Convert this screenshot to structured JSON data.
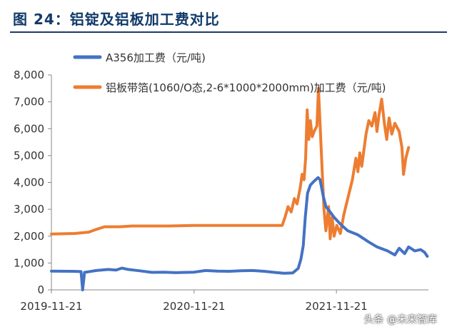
{
  "title": "图 24：铝锭及铝板加工费对比",
  "watermark": "头条 @未来智库",
  "colors": {
    "title": "#123a6a",
    "series_1": "#4472c4",
    "series_2": "#ed7d31",
    "axis": "#888888",
    "text": "#333333"
  },
  "chart_data": {
    "type": "line",
    "xlabel": "",
    "ylabel": "",
    "ylim": [
      0,
      8000
    ],
    "yticks": [
      0,
      1000,
      2000,
      3000,
      4000,
      5000,
      6000,
      7000,
      8000
    ],
    "ytick_labels": [
      "0",
      "1,000",
      "2,000",
      "3,000",
      "4,000",
      "5,000",
      "6,000",
      "7,000",
      "8,000"
    ],
    "xlim": [
      "2019-11-21",
      "2022-07-15"
    ],
    "xticks": [
      "2019-11-21",
      "2020-11-21",
      "2021-11-21"
    ],
    "grid": false,
    "legend": "top",
    "series": [
      {
        "name": "A356加工费（元/吨)",
        "color": "#4472c4",
        "points": [
          [
            "2019-11-21",
            700
          ],
          [
            "2020-01-15",
            690
          ],
          [
            "2020-02-05",
            680
          ],
          [
            "2020-02-09",
            0
          ],
          [
            "2020-02-14",
            650
          ],
          [
            "2020-03-15",
            720
          ],
          [
            "2020-04-15",
            760
          ],
          [
            "2020-05-05",
            740
          ],
          [
            "2020-05-20",
            810
          ],
          [
            "2020-06-05",
            760
          ],
          [
            "2020-07-05",
            710
          ],
          [
            "2020-08-05",
            650
          ],
          [
            "2020-09-05",
            660
          ],
          [
            "2020-10-05",
            640
          ],
          [
            "2020-11-21",
            660
          ],
          [
            "2020-12-20",
            720
          ],
          [
            "2021-01-20",
            700
          ],
          [
            "2021-02-20",
            690
          ],
          [
            "2021-03-20",
            710
          ],
          [
            "2021-04-20",
            720
          ],
          [
            "2021-05-20",
            690
          ],
          [
            "2021-06-15",
            650
          ],
          [
            "2021-07-10",
            620
          ],
          [
            "2021-08-01",
            630
          ],
          [
            "2021-08-15",
            800
          ],
          [
            "2021-08-22",
            1150
          ],
          [
            "2021-08-28",
            1650
          ],
          [
            "2021-09-02",
            2700
          ],
          [
            "2021-09-08",
            3600
          ],
          [
            "2021-09-15",
            3900
          ],
          [
            "2021-09-25",
            4050
          ],
          [
            "2021-10-05",
            4180
          ],
          [
            "2021-10-10",
            4100
          ],
          [
            "2021-10-18",
            3500
          ],
          [
            "2021-10-25",
            3100
          ],
          [
            "2021-11-05",
            2900
          ],
          [
            "2021-11-15",
            2700
          ],
          [
            "2021-12-01",
            2450
          ],
          [
            "2021-12-20",
            2200
          ],
          [
            "2022-01-15",
            2050
          ],
          [
            "2022-02-10",
            1800
          ],
          [
            "2022-03-05",
            1600
          ],
          [
            "2022-04-01",
            1450
          ],
          [
            "2022-04-20",
            1300
          ],
          [
            "2022-05-01",
            1550
          ],
          [
            "2022-05-15",
            1350
          ],
          [
            "2022-05-25",
            1600
          ],
          [
            "2022-06-10",
            1450
          ],
          [
            "2022-06-25",
            1500
          ],
          [
            "2022-07-05",
            1400
          ],
          [
            "2022-07-12",
            1250
          ]
        ]
      },
      {
        "name": "铝板带箔(1060/O态,2-6*1000*2000mm)加工费（元/吨)",
        "color": "#ed7d31",
        "points": [
          [
            "2019-11-21",
            2080
          ],
          [
            "2020-01-20",
            2100
          ],
          [
            "2020-02-25",
            2150
          ],
          [
            "2020-03-15",
            2250
          ],
          [
            "2020-04-05",
            2350
          ],
          [
            "2020-05-15",
            2350
          ],
          [
            "2020-06-15",
            2380
          ],
          [
            "2020-09-15",
            2380
          ],
          [
            "2020-11-21",
            2400
          ],
          [
            "2021-03-15",
            2400
          ],
          [
            "2021-06-15",
            2400
          ],
          [
            "2021-07-05",
            2400
          ],
          [
            "2021-07-12",
            2700
          ],
          [
            "2021-07-20",
            3100
          ],
          [
            "2021-07-28",
            2900
          ],
          [
            "2021-08-05",
            3400
          ],
          [
            "2021-08-12",
            3200
          ],
          [
            "2021-08-20",
            3800
          ],
          [
            "2021-08-25",
            4300
          ],
          [
            "2021-08-30",
            4100
          ],
          [
            "2021-09-03",
            4900
          ],
          [
            "2021-09-07",
            6700
          ],
          [
            "2021-09-11",
            5600
          ],
          [
            "2021-09-15",
            6300
          ],
          [
            "2021-09-20",
            5700
          ],
          [
            "2021-09-25",
            5900
          ],
          [
            "2021-10-02",
            6100
          ],
          [
            "2021-10-06",
            7500
          ],
          [
            "2021-10-10",
            6200
          ],
          [
            "2021-10-15",
            4600
          ],
          [
            "2021-10-20",
            3000
          ],
          [
            "2021-10-25",
            2200
          ],
          [
            "2021-11-01",
            3100
          ],
          [
            "2021-11-05",
            1900
          ],
          [
            "2021-11-10",
            2700
          ],
          [
            "2021-11-15",
            2000
          ],
          [
            "2021-11-22",
            2400
          ],
          [
            "2021-12-01",
            2100
          ],
          [
            "2021-12-10",
            2800
          ],
          [
            "2021-12-20",
            3400
          ],
          [
            "2022-01-01",
            4100
          ],
          [
            "2022-01-10",
            4900
          ],
          [
            "2022-01-15",
            4400
          ],
          [
            "2022-01-20",
            5100
          ],
          [
            "2022-01-25",
            4600
          ],
          [
            "2022-02-05",
            5800
          ],
          [
            "2022-02-12",
            6300
          ],
          [
            "2022-02-20",
            6100
          ],
          [
            "2022-02-28",
            6600
          ],
          [
            "2022-03-05",
            5900
          ],
          [
            "2022-03-10",
            6500
          ],
          [
            "2022-03-17",
            7100
          ],
          [
            "2022-03-24",
            6200
          ],
          [
            "2022-03-30",
            5600
          ],
          [
            "2022-04-05",
            6400
          ],
          [
            "2022-04-12",
            5800
          ],
          [
            "2022-04-20",
            6200
          ],
          [
            "2022-05-01",
            5900
          ],
          [
            "2022-05-08",
            5300
          ],
          [
            "2022-05-12",
            4300
          ],
          [
            "2022-05-18",
            4900
          ],
          [
            "2022-05-25",
            5300
          ]
        ]
      }
    ]
  }
}
